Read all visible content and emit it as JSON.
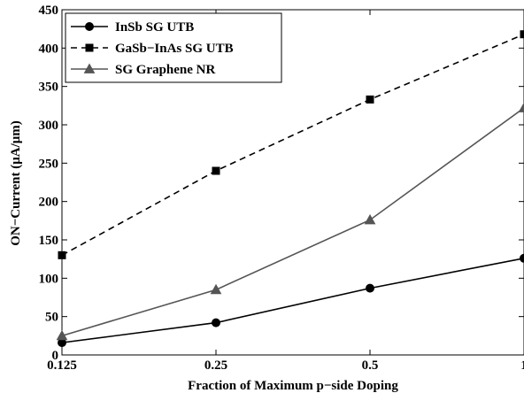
{
  "chart_data": {
    "type": "line",
    "title": "",
    "xlabel": "Fraction of Maximum p−side Doping",
    "ylabel": "ON−Current (μA/μm)",
    "x_scale": "log2",
    "x": [
      0.125,
      0.25,
      0.5,
      1
    ],
    "x_tick_labels": [
      "0.125",
      "0.25",
      "0.5",
      "1"
    ],
    "y_ticks": [
      0,
      50,
      100,
      150,
      200,
      250,
      300,
      350,
      400,
      450
    ],
    "ylim": [
      0,
      450
    ],
    "grid": false,
    "legend_position": "top-left",
    "series": [
      {
        "name": "InSb SG UTB",
        "values": [
          16,
          42,
          87,
          126
        ],
        "color": "#000000",
        "line_style": "solid",
        "marker": "circle"
      },
      {
        "name": "GaSb−InAs SG UTB",
        "values": [
          130,
          240,
          333,
          418
        ],
        "color": "#000000",
        "line_style": "dashed",
        "marker": "square"
      },
      {
        "name": "SG Graphene NR",
        "values": [
          25,
          85,
          176,
          322
        ],
        "color": "#555555",
        "line_style": "solid",
        "marker": "triangle"
      }
    ]
  }
}
